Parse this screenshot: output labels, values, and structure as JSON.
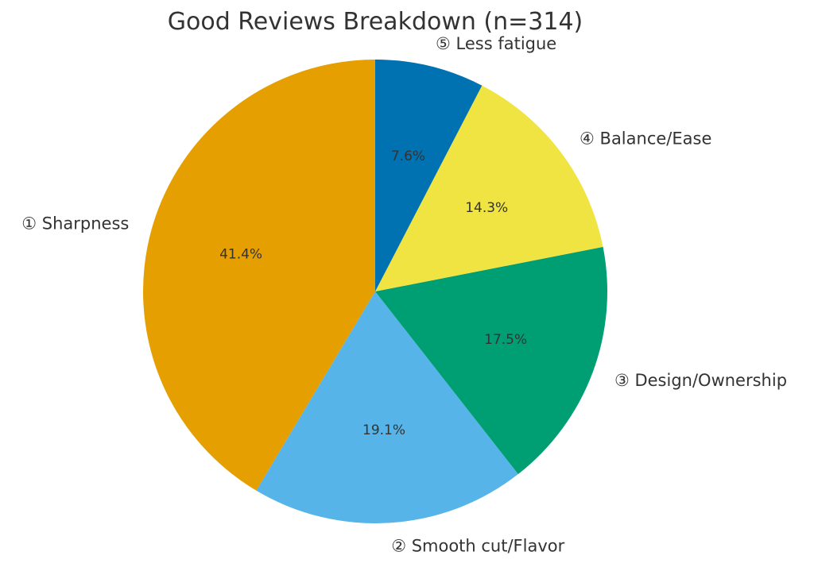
{
  "chart_data": {
    "type": "pie",
    "title": "Good Reviews Breakdown (n=314)",
    "start_angle_deg": 90,
    "direction": "counterclockwise",
    "slices": [
      {
        "label": "① Sharpness",
        "value": 41.4,
        "value_label": "41.4%",
        "color": "#E69F00"
      },
      {
        "label": "② Smooth cut/Flavor",
        "value": 19.1,
        "value_label": "19.1%",
        "color": "#56B4E9"
      },
      {
        "label": "③ Design/Ownership",
        "value": 17.5,
        "value_label": "17.5%",
        "color": "#009E73"
      },
      {
        "label": "④ Balance/Ease",
        "value": 14.3,
        "value_label": "14.3%",
        "color": "#F0E442"
      },
      {
        "label": "⑤ Less fatigue",
        "value": 7.6,
        "value_label": "7.6%",
        "color": "#0072B2"
      }
    ]
  }
}
